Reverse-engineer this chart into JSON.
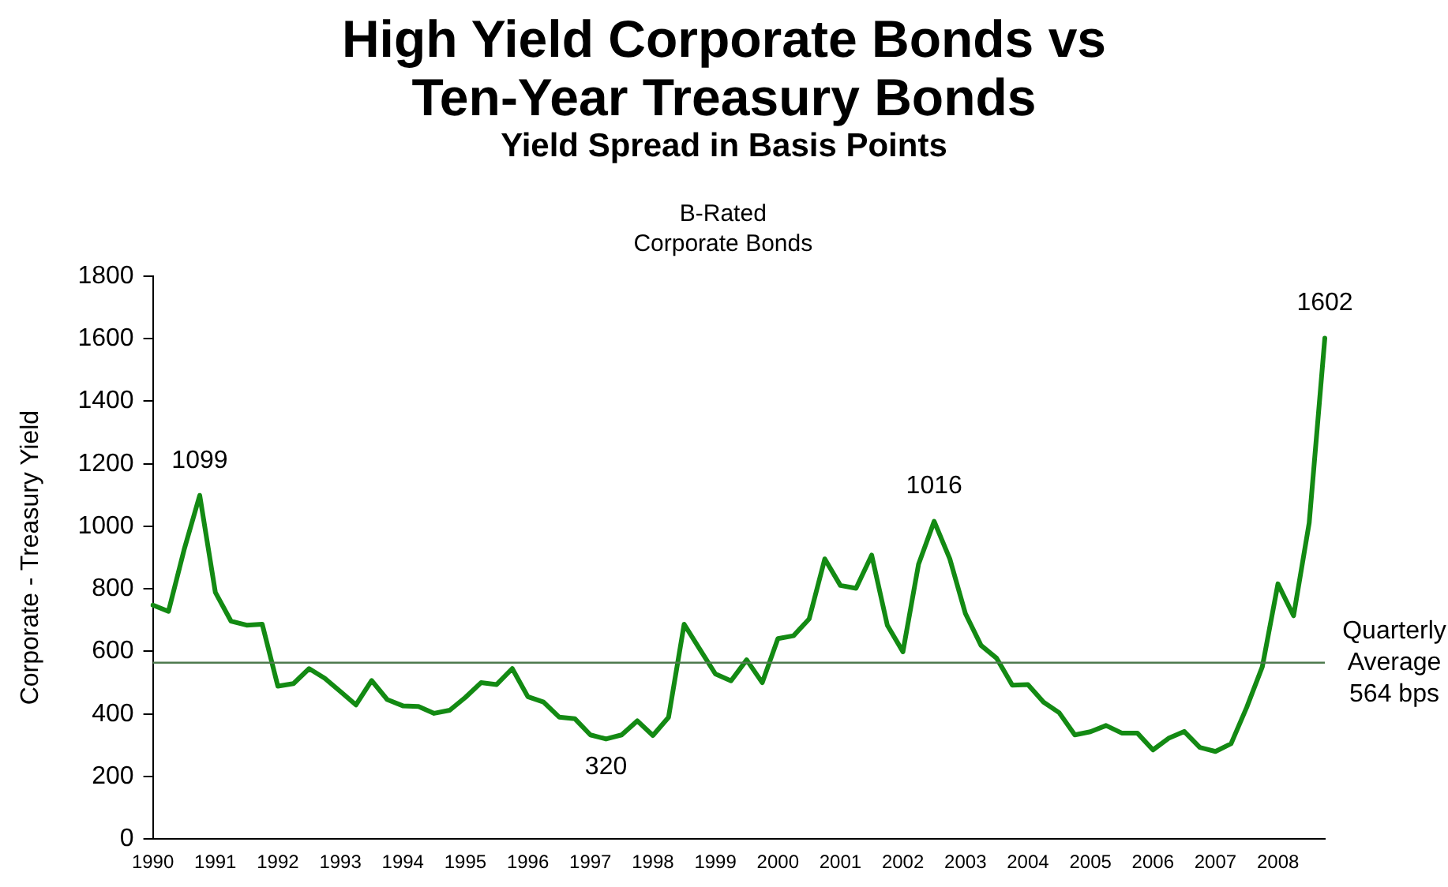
{
  "chart_data": {
    "type": "line",
    "title": "High Yield Corporate Bonds vs Ten-Year Treasury Bonds",
    "subtitle": "Yield Spread in Basis Points",
    "ylabel": "Corporate - Treasury Yield",
    "annotations": [
      "B-Rated Corporate Bonds"
    ],
    "categories": [
      "1990",
      null,
      null,
      null,
      "1991",
      null,
      null,
      null,
      "1992",
      null,
      null,
      null,
      "1993",
      null,
      null,
      null,
      "1994",
      null,
      null,
      null,
      "1995",
      null,
      null,
      null,
      "1996",
      null,
      null,
      null,
      "1997",
      null,
      null,
      null,
      "1998",
      null,
      null,
      null,
      "1999",
      null,
      null,
      null,
      "2000",
      null,
      null,
      null,
      "2001",
      null,
      null,
      null,
      "2002",
      null,
      null,
      null,
      "2003",
      null,
      null,
      null,
      "2004",
      null,
      null,
      null,
      "2005",
      null,
      null,
      null,
      "2006",
      null,
      null,
      null,
      "2007",
      null,
      null,
      null,
      "2008",
      null,
      null,
      null
    ],
    "series": [
      {
        "color": "#138a13",
        "values": [
          748,
          728,
          925,
          1099,
          789,
          697,
          684,
          687,
          489,
          497,
          545,
          514,
          472,
          429,
          507,
          446,
          426,
          424,
          402,
          412,
          453,
          500,
          494,
          545,
          455,
          438,
          390,
          385,
          333,
          320,
          333,
          378,
          331,
          389,
          687,
          607,
          528,
          506,
          573,
          500,
          641,
          650,
          704,
          896,
          811,
          802,
          908,
          684,
          599,
          879,
          1016,
          896,
          721,
          619,
          578,
          492,
          494,
          438,
          404,
          333,
          343,
          363,
          339,
          339,
          285,
          322,
          344,
          293,
          280,
          305,
          421,
          551,
          816,
          714,
          1011,
          1602
        ],
        "value_labels": [
          null,
          null,
          null,
          "1099",
          null,
          null,
          null,
          null,
          null,
          null,
          null,
          null,
          null,
          null,
          null,
          null,
          null,
          null,
          null,
          null,
          null,
          null,
          null,
          null,
          null,
          null,
          null,
          null,
          null,
          "320",
          null,
          null,
          null,
          null,
          null,
          null,
          null,
          null,
          null,
          null,
          null,
          null,
          null,
          null,
          null,
          null,
          null,
          null,
          null,
          null,
          "1016",
          null,
          null,
          null,
          null,
          null,
          null,
          null,
          null,
          null,
          null,
          null,
          null,
          null,
          null,
          null,
          null,
          null,
          null,
          null,
          null,
          null,
          null,
          null,
          null,
          "1602"
        ]
      }
    ],
    "ylim": [
      0,
      1800
    ],
    "yticks": [
      0,
      200,
      400,
      600,
      800,
      1000,
      1200,
      1400,
      1600,
      1800
    ],
    "ref_lines": [
      {
        "axis": "y",
        "value": 564,
        "label": "Quarterly Average 564 bps",
        "color": "#4e7a4e"
      }
    ],
    "grid": false,
    "legend": false,
    "marker": "none",
    "line_style": "solid"
  }
}
